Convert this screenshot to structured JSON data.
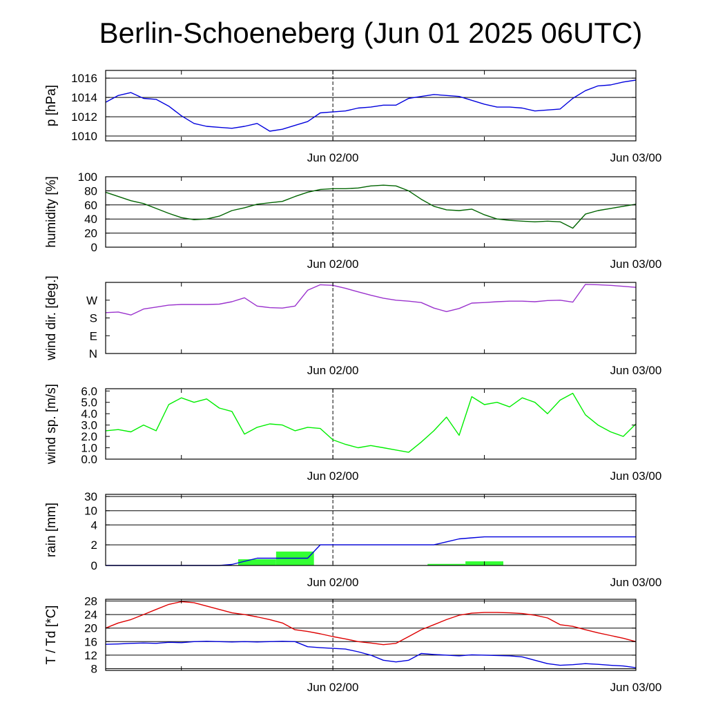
{
  "title": "Berlin-Schoeneberg (Jun 01 2025 06UTC)",
  "x_axis": {
    "start": "Jun 01 06UTC",
    "end": "Jun 03 00UTC",
    "tick_labels": [
      "Jun 02/00",
      "Jun 03/00"
    ],
    "marker_line": "Jun 02/00"
  },
  "chart_data": [
    {
      "type": "line",
      "ylabel": "p [hPa]",
      "ylim": [
        1009.5,
        1016.8
      ],
      "yticks": [
        "1010",
        "1012",
        "1014",
        "1016"
      ],
      "grid": true,
      "series": [
        {
          "color": "#0000dd",
          "x": [
            0,
            1,
            2,
            3,
            4,
            5,
            6,
            7,
            8,
            9,
            10,
            11,
            12,
            13,
            14,
            15,
            16,
            17,
            18,
            19,
            20,
            21,
            22,
            23,
            24,
            25,
            26,
            27,
            28,
            29,
            30,
            31,
            32,
            33,
            34,
            35,
            36,
            37,
            38,
            39,
            40,
            41,
            42
          ],
          "y": [
            1013.5,
            1014.2,
            1014.5,
            1013.9,
            1013.8,
            1013.1,
            1012.1,
            1011.3,
            1011.0,
            1010.9,
            1010.8,
            1011.0,
            1011.3,
            1010.5,
            1010.7,
            1011.1,
            1011.5,
            1012.4,
            1012.5,
            1012.6,
            1012.9,
            1013.0,
            1013.2,
            1013.2,
            1013.9,
            1014.1,
            1014.3,
            1014.2,
            1014.1,
            1013.7,
            1013.3,
            1013.0,
            1013.0,
            1012.9,
            1012.6,
            1012.7,
            1012.8,
            1013.9,
            1014.7,
            1015.2,
            1015.3,
            1015.6,
            1015.8
          ]
        }
      ]
    },
    {
      "type": "line",
      "ylabel": "humidity [%]",
      "ylim": [
        0,
        100
      ],
      "yticks": [
        "0",
        "20",
        "40",
        "60",
        "80",
        "100"
      ],
      "grid": true,
      "series": [
        {
          "color": "#006400",
          "x": [
            0,
            1,
            2,
            3,
            4,
            5,
            6,
            7,
            8,
            9,
            10,
            11,
            12,
            13,
            14,
            15,
            16,
            17,
            18,
            19,
            20,
            21,
            22,
            23,
            24,
            25,
            26,
            27,
            28,
            29,
            30,
            31,
            32,
            33,
            34,
            35,
            36,
            37,
            38,
            39,
            40,
            41,
            42
          ],
          "y": [
            78,
            72,
            66,
            62,
            55,
            48,
            42,
            39,
            40,
            44,
            52,
            56,
            61,
            63,
            65,
            72,
            78,
            82,
            83,
            83,
            84,
            87,
            88,
            87,
            80,
            68,
            58,
            53,
            52,
            54,
            46,
            40,
            38,
            37,
            36,
            37,
            36,
            27,
            47,
            52,
            55,
            58,
            61
          ]
        }
      ]
    },
    {
      "type": "line",
      "ylabel": "wind dir. [deg.]",
      "ylim": [
        0,
        360
      ],
      "yticks": [
        "N",
        "E",
        "S",
        "W"
      ],
      "ytick_values": [
        0,
        90,
        180,
        270
      ],
      "grid": false,
      "series": [
        {
          "color": "#9a32cd",
          "x": [
            0,
            1,
            2,
            3,
            4,
            5,
            6,
            7,
            8,
            9,
            10,
            11,
            12,
            13,
            14,
            15,
            16,
            17,
            18,
            19,
            20,
            21,
            22,
            23,
            24,
            25,
            26,
            27,
            28,
            29,
            30,
            31,
            32,
            33,
            34,
            35,
            36,
            37,
            38,
            39,
            40,
            41,
            42
          ],
          "y": [
            207,
            210,
            195,
            225,
            235,
            245,
            248,
            248,
            248,
            250,
            262,
            282,
            240,
            232,
            230,
            240,
            320,
            348,
            345,
            330,
            312,
            295,
            280,
            270,
            265,
            258,
            230,
            212,
            228,
            255,
            258,
            262,
            265,
            265,
            262,
            268,
            270,
            260,
            350,
            348,
            345,
            340,
            335
          ]
        }
      ]
    },
    {
      "type": "line",
      "ylabel": "wind sp. [m/s]",
      "ylim": [
        0,
        6.2
      ],
      "yticks": [
        "0.0",
        "1.0",
        "2.0",
        "3.0",
        "4.0",
        "5.0",
        "6.0"
      ],
      "grid": false,
      "series": [
        {
          "color": "#00ee00",
          "x": [
            0,
            1,
            2,
            3,
            4,
            5,
            6,
            7,
            8,
            9,
            10,
            11,
            12,
            13,
            14,
            15,
            16,
            17,
            18,
            19,
            20,
            21,
            22,
            23,
            24,
            25,
            26,
            27,
            28,
            29,
            30,
            31,
            32,
            33,
            34,
            35,
            36,
            37,
            38,
            39,
            40,
            41,
            42
          ],
          "y": [
            2.5,
            2.6,
            2.4,
            3.0,
            2.5,
            4.8,
            5.4,
            5.0,
            5.3,
            4.5,
            4.2,
            2.2,
            2.8,
            3.1,
            3.0,
            2.5,
            2.8,
            2.7,
            1.7,
            1.3,
            1.0,
            1.2,
            1.0,
            0.8,
            0.6,
            1.5,
            2.5,
            3.7,
            2.1,
            5.5,
            4.8,
            5.0,
            4.6,
            5.4,
            5.0,
            4.0,
            5.2,
            5.8,
            3.9,
            3.0,
            2.4,
            2.0,
            3.1
          ]
        }
      ]
    },
    {
      "type": "bar",
      "ylabel": "rain [mm]",
      "yticks": [
        "0",
        "2",
        "4",
        "10",
        "30"
      ],
      "ytick_values": [
        0,
        2,
        4,
        10,
        30
      ],
      "grid": true,
      "bars_color": "#33ff33",
      "bars": [
        {
          "x0": 10.5,
          "x1": 13.5,
          "value": 0.6
        },
        {
          "x0": 13.5,
          "x1": 16.5,
          "value": 1.35
        },
        {
          "x0": 25.5,
          "x1": 28.5,
          "value": 0.15
        },
        {
          "x0": 28.5,
          "x1": 31.5,
          "value": 0.4
        }
      ],
      "series": [
        {
          "color": "#0000dd",
          "name": "accumulated",
          "x": [
            0,
            8,
            9,
            10,
            11,
            12,
            13,
            14,
            15,
            16,
            17,
            18,
            20,
            22,
            24,
            25,
            26,
            27,
            28,
            29,
            30,
            31,
            32,
            34,
            36,
            38,
            40,
            42
          ],
          "y": [
            0,
            0,
            0,
            0.1,
            0.4,
            0.7,
            0.7,
            0.7,
            0.7,
            0.7,
            2.0,
            2.0,
            2.0,
            2.0,
            2.0,
            2.0,
            2.0,
            2.3,
            2.6,
            2.7,
            2.8,
            2.8,
            2.8,
            2.8,
            2.8,
            2.8,
            2.8,
            2.8
          ]
        }
      ]
    },
    {
      "type": "line",
      "ylabel": "T / Td [*C]",
      "ylim": [
        7.5,
        28.5
      ],
      "yticks": [
        "8",
        "12",
        "16",
        "20",
        "24",
        "28"
      ],
      "grid": true,
      "series": [
        {
          "color": "#dd0000",
          "name": "T",
          "x": [
            0,
            1,
            2,
            3,
            4,
            5,
            6,
            7,
            8,
            9,
            10,
            11,
            12,
            13,
            14,
            15,
            16,
            17,
            18,
            19,
            20,
            21,
            22,
            23,
            24,
            25,
            26,
            27,
            28,
            29,
            30,
            31,
            32,
            33,
            34,
            35,
            36,
            37,
            38,
            39,
            40,
            41,
            42
          ],
          "y": [
            20.0,
            21.5,
            22.5,
            24.0,
            25.5,
            27.0,
            27.8,
            27.5,
            26.5,
            25.5,
            24.5,
            24.0,
            23.3,
            22.5,
            21.5,
            19.5,
            19.0,
            18.3,
            17.5,
            16.8,
            16.0,
            15.6,
            15.1,
            15.5,
            17.5,
            19.5,
            21.0,
            22.5,
            23.8,
            24.4,
            24.6,
            24.6,
            24.5,
            24.3,
            23.8,
            23.0,
            21.0,
            20.5,
            19.5,
            18.6,
            17.8,
            17.0,
            16.0
          ]
        },
        {
          "color": "#0000dd",
          "name": "Td",
          "x": [
            0,
            1,
            2,
            3,
            4,
            5,
            6,
            7,
            8,
            9,
            10,
            11,
            12,
            13,
            14,
            15,
            16,
            17,
            18,
            19,
            20,
            21,
            22,
            23,
            24,
            25,
            26,
            27,
            28,
            29,
            30,
            31,
            32,
            33,
            34,
            35,
            36,
            37,
            38,
            39,
            40,
            41,
            42
          ],
          "y": [
            15.2,
            15.3,
            15.5,
            15.6,
            15.5,
            15.8,
            15.7,
            16.0,
            16.1,
            16.0,
            15.9,
            16.0,
            15.9,
            16.0,
            16.1,
            16.0,
            14.5,
            14.2,
            14.0,
            13.8,
            13.0,
            12.0,
            10.5,
            10.0,
            10.5,
            12.5,
            12.2,
            12.0,
            11.8,
            12.1,
            12.0,
            11.9,
            11.8,
            11.5,
            10.5,
            9.5,
            9.0,
            9.2,
            9.5,
            9.3,
            9.0,
            8.8,
            8.3
          ]
        }
      ]
    }
  ]
}
